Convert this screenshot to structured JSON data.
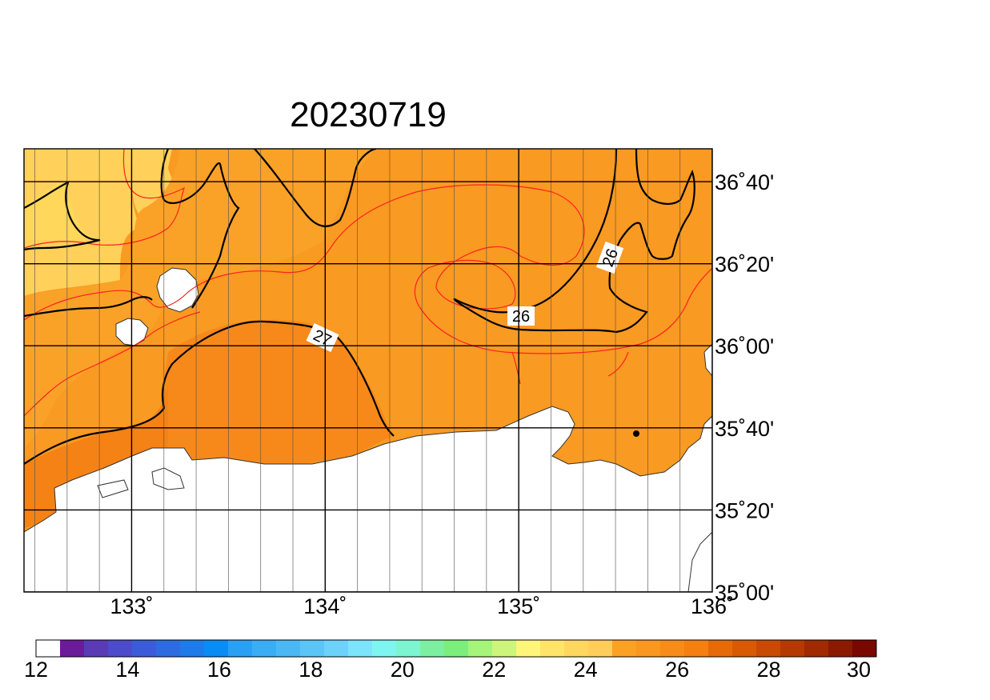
{
  "map": {
    "title": "20230719",
    "lon_ticks": [
      {
        "value": 133,
        "label": "133˚"
      },
      {
        "value": 134,
        "label": "134˚"
      },
      {
        "value": 135,
        "label": "135˚"
      },
      {
        "value": 136,
        "label": "136˚"
      }
    ],
    "lat_ticks": [
      {
        "value": 36.6667,
        "label": "36˚40'"
      },
      {
        "value": 36.3333,
        "label": "36˚20'"
      },
      {
        "value": 36.0,
        "label": "36˚00'"
      },
      {
        "value": 35.6667,
        "label": "35˚40'"
      },
      {
        "value": 35.3333,
        "label": "35˚20'"
      },
      {
        "value": 35.0,
        "label": "35˚00'"
      }
    ],
    "contour_labels": [
      {
        "text": "27",
        "value": 27
      },
      {
        "text": "26",
        "value": 26
      },
      {
        "text": "26",
        "value": 26
      }
    ],
    "colors": {
      "sst_24": "#FFD75A",
      "sst_25_5": "#FBA124",
      "sst_26_5": "#F89A20",
      "sst_27": "#F7891A",
      "sst_28": "#F47F10",
      "land": "#FFFFFF",
      "contour_main": "#000000",
      "contour_minor": "#FF2020"
    }
  },
  "colorbar": {
    "tick_labels": [
      "12",
      "14",
      "16",
      "18",
      "20",
      "22",
      "24",
      "26",
      "28",
      "30"
    ],
    "colors": [
      "#FFFFFF",
      "#6B1B9A",
      "#5A3BB5",
      "#4B4BCB",
      "#3A5CD8",
      "#2E6BE0",
      "#1E7BEA",
      "#0A8CF5",
      "#2AA0F5",
      "#3AADF5",
      "#4AB8F5",
      "#5BC5F8",
      "#6CD2FA",
      "#7DE4FD",
      "#7EF5F0",
      "#7CF5D0",
      "#7CF0A0",
      "#7CEE7C",
      "#A5F57A",
      "#CDF57A",
      "#FFF57A",
      "#FFE46A",
      "#FFD760",
      "#FFCD5A",
      "#FBA124",
      "#F99720",
      "#F88C1A",
      "#F57F10",
      "#E56A08",
      "#D85A05",
      "#C84A03",
      "#B53A02",
      "#A02A01",
      "#8A1A00",
      "#780800"
    ]
  }
}
